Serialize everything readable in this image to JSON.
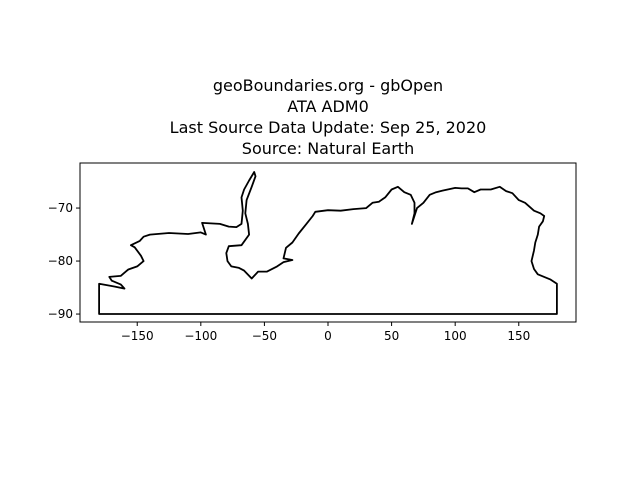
{
  "title": {
    "line1": "geoBoundaries.org - gbOpen",
    "line2": "ATA ADM0",
    "line3": "Last Source Data Update: Sep 25, 2020",
    "line4": "Source: Natural Earth"
  },
  "chart_data": {
    "type": "map",
    "xlim": [
      -195,
      195
    ],
    "ylim": [
      -91.5,
      -61.5
    ],
    "xticks": [
      -150,
      -100,
      -50,
      0,
      50,
      100,
      150
    ],
    "yticks": [
      -70,
      -80,
      -90
    ],
    "xtick_labels": [
      "−150",
      "−100",
      "−50",
      "0",
      "50",
      "100",
      "150"
    ],
    "ytick_labels": [
      "−70",
      "−80",
      "−90"
    ],
    "grid": false,
    "outline_color": "#000000",
    "outline": [
      [
        -180,
        -84.3
      ],
      [
        -168,
        -84.8
      ],
      [
        -160,
        -85.2
      ],
      [
        -163,
        -84.4
      ],
      [
        -170,
        -83.7
      ],
      [
        -172,
        -83.0
      ],
      [
        -163,
        -82.8
      ],
      [
        -157,
        -81.6
      ],
      [
        -150,
        -81.0
      ],
      [
        -145,
        -80.0
      ],
      [
        -147,
        -79.0
      ],
      [
        -152,
        -77.4
      ],
      [
        -155,
        -77.0
      ],
      [
        -148,
        -76.2
      ],
      [
        -145,
        -75.4
      ],
      [
        -140,
        -75.0
      ],
      [
        -125,
        -74.7
      ],
      [
        -110,
        -74.9
      ],
      [
        -100,
        -74.6
      ],
      [
        -96,
        -75.0
      ],
      [
        -99,
        -72.8
      ],
      [
        -85,
        -73.0
      ],
      [
        -78,
        -73.5
      ],
      [
        -72,
        -73.6
      ],
      [
        -68,
        -73.0
      ],
      [
        -67,
        -70.5
      ],
      [
        -68,
        -68.0
      ],
      [
        -66,
        -66.5
      ],
      [
        -62,
        -64.8
      ],
      [
        -58,
        -63.2
      ],
      [
        -57,
        -64.0
      ],
      [
        -60,
        -66.0
      ],
      [
        -64,
        -68.5
      ],
      [
        -65,
        -71.0
      ],
      [
        -63,
        -73.0
      ],
      [
        -62,
        -75.0
      ],
      [
        -68,
        -77.0
      ],
      [
        -78,
        -77.2
      ],
      [
        -80,
        -78.5
      ],
      [
        -79,
        -80.0
      ],
      [
        -76,
        -81.0
      ],
      [
        -70,
        -81.3
      ],
      [
        -66,
        -81.8
      ],
      [
        -60,
        -83.3
      ],
      [
        -55,
        -82.0
      ],
      [
        -48,
        -82.0
      ],
      [
        -40,
        -81.0
      ],
      [
        -35,
        -80.2
      ],
      [
        -28,
        -79.8
      ],
      [
        -35,
        -79.5
      ],
      [
        -33,
        -77.5
      ],
      [
        -28,
        -76.5
      ],
      [
        -23,
        -74.8
      ],
      [
        -17,
        -73.0
      ],
      [
        -12,
        -71.5
      ],
      [
        -10,
        -70.7
      ],
      [
        0,
        -70.4
      ],
      [
        10,
        -70.5
      ],
      [
        20,
        -70.2
      ],
      [
        30,
        -70.0
      ],
      [
        35,
        -69.0
      ],
      [
        40,
        -68.8
      ],
      [
        45,
        -68.0
      ],
      [
        50,
        -66.5
      ],
      [
        55,
        -66.0
      ],
      [
        60,
        -67.0
      ],
      [
        65,
        -67.5
      ],
      [
        68,
        -69.0
      ],
      [
        68,
        -71.0
      ],
      [
        66,
        -73.0
      ],
      [
        70,
        -70.0
      ],
      [
        75,
        -69.0
      ],
      [
        80,
        -67.5
      ],
      [
        85,
        -67.0
      ],
      [
        90,
        -66.7
      ],
      [
        100,
        -66.2
      ],
      [
        105,
        -66.3
      ],
      [
        110,
        -66.3
      ],
      [
        115,
        -67.0
      ],
      [
        120,
        -66.5
      ],
      [
        128,
        -66.5
      ],
      [
        135,
        -66.0
      ],
      [
        140,
        -66.8
      ],
      [
        145,
        -67.2
      ],
      [
        150,
        -68.5
      ],
      [
        155,
        -69.0
      ],
      [
        162,
        -70.5
      ],
      [
        167,
        -71.0
      ],
      [
        170,
        -71.5
      ],
      [
        169,
        -72.5
      ],
      [
        166,
        -73.5
      ],
      [
        165,
        -75.0
      ],
      [
        163,
        -76.5
      ],
      [
        162,
        -78.0
      ],
      [
        160,
        -80.0
      ],
      [
        162,
        -81.5
      ],
      [
        165,
        -82.5
      ],
      [
        170,
        -83.0
      ],
      [
        175,
        -83.5
      ],
      [
        180,
        -84.3
      ],
      [
        180,
        -90.0
      ],
      [
        -180,
        -90.0
      ],
      [
        -180,
        -84.3
      ]
    ]
  }
}
